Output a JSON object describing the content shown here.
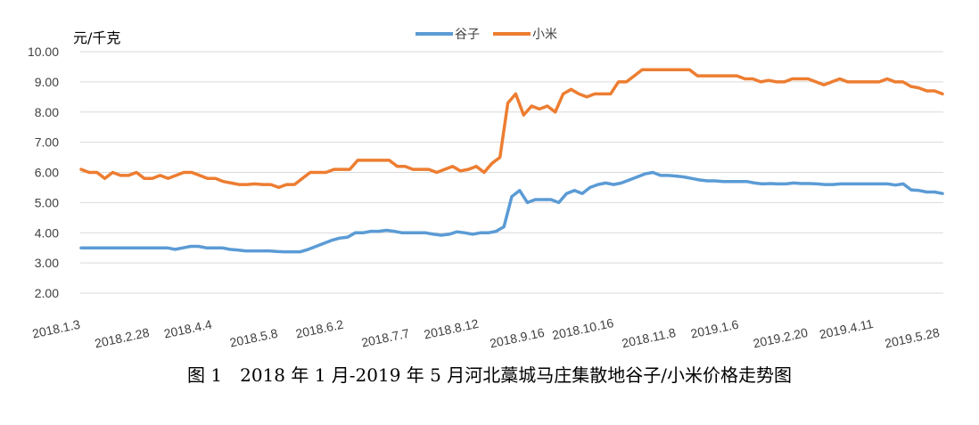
{
  "chart_data": {
    "type": "line",
    "title": "",
    "ylabel": "元/千克",
    "xlabel": "",
    "ylim": [
      2,
      10
    ],
    "yticks": [
      "2.00",
      "3.00",
      "4.00",
      "5.00",
      "6.00",
      "7.00",
      "8.00",
      "9.00",
      "10.00"
    ],
    "x_tick_labels": [
      "2018.1.3",
      "2018.2.28",
      "2018.4.4",
      "2018.5.8",
      "2018.6.2",
      "2018.7.7",
      "2018.8.12",
      "2018.9.16",
      "2018.10.16",
      "2018.11.8",
      "2019.1.6",
      "2019.2.20",
      "2019.4.11",
      "2019.5.28"
    ],
    "legend_position": "top-center",
    "grid": "horizontal",
    "series": [
      {
        "name": "谷子",
        "color": "#5B9BD5",
        "values": [
          3.5,
          3.5,
          3.5,
          3.5,
          3.5,
          3.5,
          3.5,
          3.5,
          3.5,
          3.5,
          3.5,
          3.5,
          3.45,
          3.5,
          3.55,
          3.55,
          3.5,
          3.5,
          3.5,
          3.45,
          3.43,
          3.4,
          3.4,
          3.4,
          3.4,
          3.38,
          3.37,
          3.37,
          3.37,
          3.45,
          3.55,
          3.65,
          3.75,
          3.82,
          3.85,
          4.0,
          4.0,
          4.05,
          4.05,
          4.08,
          4.05,
          4.0,
          4.0,
          4.0,
          4.0,
          3.95,
          3.92,
          3.95,
          4.03,
          4.0,
          3.95,
          4.0,
          4.0,
          4.05,
          4.2,
          5.2,
          5.4,
          5.0,
          5.1,
          5.1,
          5.1,
          5.0,
          5.3,
          5.4,
          5.3,
          5.5,
          5.6,
          5.65,
          5.6,
          5.65,
          5.75,
          5.85,
          5.95,
          6.0,
          5.9,
          5.9,
          5.88,
          5.85,
          5.8,
          5.75,
          5.72,
          5.72,
          5.7,
          5.7,
          5.7,
          5.7,
          5.65,
          5.62,
          5.63,
          5.62,
          5.62,
          5.65,
          5.63,
          5.63,
          5.62,
          5.6,
          5.6,
          5.62,
          5.62,
          5.62,
          5.62,
          5.62,
          5.62,
          5.62,
          5.58,
          5.62,
          5.42,
          5.4,
          5.35,
          5.35,
          5.3
        ]
      },
      {
        "name": "小米",
        "color": "#ED7D31",
        "values": [
          6.1,
          6.0,
          6.0,
          5.8,
          6.0,
          5.9,
          5.9,
          6.0,
          5.8,
          5.8,
          5.9,
          5.8,
          5.9,
          6.0,
          6.0,
          5.9,
          5.8,
          5.8,
          5.7,
          5.65,
          5.6,
          5.6,
          5.62,
          5.6,
          5.6,
          5.5,
          5.6,
          5.6,
          5.8,
          6.0,
          6.0,
          6.0,
          6.1,
          6.1,
          6.1,
          6.4,
          6.4,
          6.4,
          6.4,
          6.4,
          6.2,
          6.2,
          6.1,
          6.1,
          6.1,
          6.0,
          6.1,
          6.2,
          6.05,
          6.1,
          6.2,
          6.0,
          6.3,
          6.5,
          8.3,
          8.6,
          7.9,
          8.2,
          8.1,
          8.2,
          8.0,
          8.6,
          8.75,
          8.6,
          8.5,
          8.6,
          8.6,
          8.6,
          9.0,
          9.0,
          9.2,
          9.4,
          9.4,
          9.4,
          9.4,
          9.4,
          9.4,
          9.4,
          9.2,
          9.2,
          9.2,
          9.2,
          9.2,
          9.2,
          9.1,
          9.1,
          9.0,
          9.05,
          9.0,
          9.0,
          9.1,
          9.1,
          9.1,
          9.0,
          8.9,
          9.0,
          9.1,
          9.0,
          9.0,
          9.0,
          9.0,
          9.0,
          9.1,
          9.0,
          9.0,
          8.85,
          8.8,
          8.7,
          8.7,
          8.6
        ]
      }
    ]
  },
  "caption": "图 1　2018 年 1 月-2019 年 5 月河北藁城马庄集散地谷子/小米价格走势图"
}
